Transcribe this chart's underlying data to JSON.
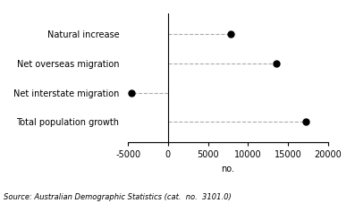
{
  "categories": [
    "Natural increase",
    "Net overseas migration",
    "Net interstate migration",
    "Total population growth"
  ],
  "values": [
    7800,
    13500,
    -4600,
    17200
  ],
  "xlim": [
    -5000,
    20000
  ],
  "xticks": [
    -5000,
    0,
    5000,
    10000,
    15000,
    20000
  ],
  "xlabel": "no.",
  "source_text": "Source: Australian Demographic Statistics (cat.  no.  3101.0)",
  "dot_color": "#000000",
  "dot_size": 25,
  "line_color": "#aaaaaa",
  "line_style": "--",
  "line_width": 0.8,
  "vline_color": "#000000",
  "bg_color": "#ffffff",
  "label_fontsize": 7,
  "tick_fontsize": 7,
  "source_fontsize": 6
}
